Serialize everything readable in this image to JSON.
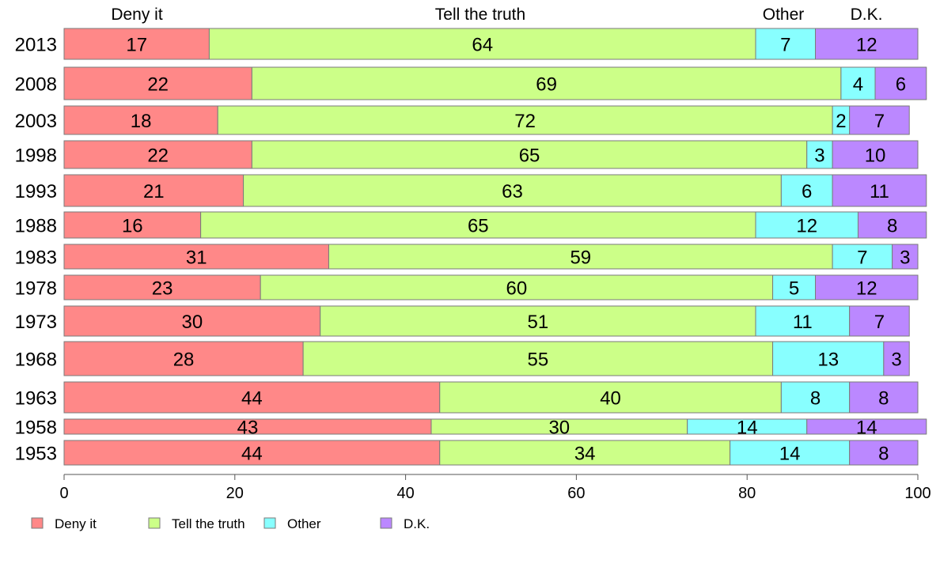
{
  "chart_data": {
    "type": "bar",
    "orientation": "horizontal",
    "stacked": true,
    "categories": [
      "2013",
      "2008",
      "2003",
      "1998",
      "1993",
      "1988",
      "1983",
      "1978",
      "1973",
      "1968",
      "1963",
      "1958",
      "1953"
    ],
    "series": [
      {
        "name": "Deny it",
        "color": "#ff8888",
        "values": [
          17,
          22,
          18,
          22,
          21,
          16,
          31,
          23,
          30,
          28,
          44,
          43,
          44
        ]
      },
      {
        "name": "Tell the truth",
        "color": "#ccff88",
        "values": [
          64,
          69,
          72,
          65,
          63,
          65,
          59,
          60,
          51,
          55,
          40,
          30,
          34
        ]
      },
      {
        "name": "Other",
        "color": "#88ffff",
        "values": [
          7,
          4,
          2,
          3,
          6,
          12,
          7,
          5,
          11,
          13,
          8,
          14,
          14
        ]
      },
      {
        "name": "D.K.",
        "color": "#bb88ff",
        "values": [
          12,
          6,
          7,
          10,
          11,
          8,
          3,
          12,
          7,
          3,
          8,
          14,
          8
        ]
      }
    ],
    "top_labels": [
      "Deny it",
      "Tell the truth",
      "Other",
      "D.K."
    ],
    "xlim": [
      0,
      100
    ],
    "xticks": [
      "0",
      "20",
      "40",
      "60",
      "80",
      "100"
    ],
    "legend": {
      "position": "bottom-left",
      "entries": [
        "Deny it",
        "Tell the truth",
        "Other",
        "D.K."
      ]
    },
    "grid": false
  }
}
